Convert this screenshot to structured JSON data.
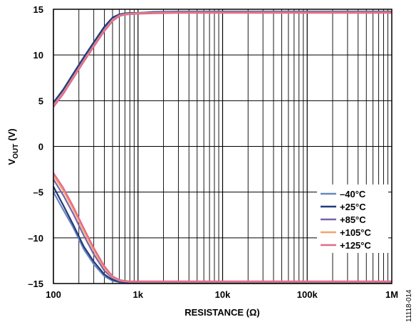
{
  "figure_id": "11118-014",
  "chart_data": {
    "type": "line",
    "xlabel": "RESISTANCE (Ω)",
    "ylabel_main": "V",
    "ylabel_sub": "OUT",
    "ylabel_unit": "(V)",
    "x_scale": "log",
    "xlim": [
      100,
      1000000
    ],
    "ylim": [
      -15,
      15
    ],
    "x_ticks": [
      {
        "value": 100,
        "label": "100"
      },
      {
        "value": 1000,
        "label": "1k"
      },
      {
        "value": 10000,
        "label": "10k"
      },
      {
        "value": 100000,
        "label": "100k"
      },
      {
        "value": 1000000,
        "label": "1M"
      }
    ],
    "y_ticks": [
      {
        "value": -15,
        "label": "–15"
      },
      {
        "value": -10,
        "label": "–10"
      },
      {
        "value": -5,
        "label": "–5"
      },
      {
        "value": 0,
        "label": "0"
      },
      {
        "value": 5,
        "label": "5"
      },
      {
        "value": 10,
        "label": "10"
      },
      {
        "value": 15,
        "label": "15"
      }
    ],
    "grid": true,
    "legend_position": "bottom-right",
    "series": [
      {
        "name": "–40°C",
        "color": "#6b86bf",
        "positive": {
          "x": [
            100,
            130,
            170,
            230,
            300,
            400,
            500,
            600,
            700,
            800,
            1000,
            1500,
            3000,
            10000,
            100000,
            1000000
          ],
          "y": [
            4.4,
            5.8,
            7.6,
            9.5,
            11.2,
            12.9,
            13.9,
            14.3,
            14.5,
            14.55,
            14.6,
            14.65,
            14.7,
            14.7,
            14.7,
            14.7
          ]
        },
        "negative": {
          "x": [
            100,
            130,
            170,
            230,
            300,
            400,
            500,
            600,
            700,
            800,
            1000,
            1500,
            3000,
            10000,
            100000,
            1000000
          ],
          "y": [
            -5.0,
            -6.9,
            -8.8,
            -11.3,
            -12.9,
            -14.2,
            -14.7,
            -14.85,
            -14.9,
            -14.9,
            -14.9,
            -14.9,
            -14.9,
            -14.9,
            -14.9,
            -14.9
          ]
        }
      },
      {
        "name": "+25°C",
        "color": "#1f3a7a",
        "positive": {
          "x": [
            100,
            130,
            170,
            230,
            300,
            400,
            500,
            600,
            700,
            800,
            1000,
            1500,
            3000,
            10000,
            100000,
            1000000
          ],
          "y": [
            4.8,
            6.2,
            7.9,
            9.8,
            11.4,
            13.1,
            14.1,
            14.45,
            14.55,
            14.6,
            14.6,
            14.7,
            14.75,
            14.75,
            14.75,
            14.75
          ]
        },
        "negative": {
          "x": [
            100,
            130,
            170,
            230,
            300,
            400,
            500,
            600,
            700,
            800,
            1000,
            1500,
            3000,
            10000,
            100000,
            1000000
          ],
          "y": [
            -4.4,
            -6.4,
            -8.5,
            -11.0,
            -12.6,
            -14.0,
            -14.6,
            -14.8,
            -14.85,
            -14.9,
            -14.9,
            -14.9,
            -14.9,
            -14.9,
            -14.9,
            -14.9
          ]
        }
      },
      {
        "name": "+85°C",
        "color": "#7a62aa",
        "positive": {
          "x": [
            100,
            130,
            170,
            230,
            300,
            400,
            500,
            600,
            700,
            800,
            1000,
            1500,
            3000,
            10000,
            100000,
            1000000
          ],
          "y": [
            4.5,
            5.9,
            7.6,
            9.5,
            11.1,
            12.8,
            13.9,
            14.35,
            14.5,
            14.55,
            14.6,
            14.65,
            14.7,
            14.7,
            14.7,
            14.7
          ]
        },
        "negative": {
          "x": [
            100,
            130,
            170,
            230,
            300,
            400,
            500,
            600,
            700,
            800,
            1000,
            1500,
            3000,
            10000,
            100000,
            1000000
          ],
          "y": [
            -3.6,
            -5.3,
            -7.3,
            -9.8,
            -11.8,
            -13.6,
            -14.4,
            -14.7,
            -14.8,
            -14.85,
            -14.85,
            -14.85,
            -14.85,
            -14.85,
            -14.85,
            -14.85
          ]
        }
      },
      {
        "name": "+105°C",
        "color": "#f3a46b",
        "positive": {
          "x": [
            100,
            130,
            170,
            230,
            300,
            400,
            500,
            600,
            700,
            800,
            1000,
            1500,
            3000,
            10000,
            100000,
            1000000
          ],
          "y": [
            4.4,
            5.8,
            7.5,
            9.4,
            11.0,
            12.7,
            13.8,
            14.3,
            14.45,
            14.5,
            14.55,
            14.6,
            14.65,
            14.65,
            14.65,
            14.65
          ]
        },
        "negative": {
          "x": [
            100,
            130,
            170,
            230,
            300,
            400,
            500,
            600,
            700,
            800,
            1000,
            1500,
            3000,
            10000,
            100000,
            1000000
          ],
          "y": [
            -3.2,
            -4.8,
            -6.8,
            -9.3,
            -11.4,
            -13.3,
            -14.3,
            -14.65,
            -14.75,
            -14.8,
            -14.8,
            -14.8,
            -14.8,
            -14.8,
            -14.8,
            -14.8
          ]
        }
      },
      {
        "name": "+125°C",
        "color": "#e46a8c",
        "positive": {
          "x": [
            100,
            130,
            170,
            230,
            300,
            400,
            500,
            600,
            700,
            800,
            1000,
            1500,
            3000,
            10000,
            100000,
            1000000
          ],
          "y": [
            4.3,
            5.7,
            7.4,
            9.3,
            10.9,
            12.6,
            13.7,
            14.25,
            14.4,
            14.45,
            14.5,
            14.55,
            14.6,
            14.6,
            14.6,
            14.6
          ]
        },
        "negative": {
          "x": [
            100,
            130,
            170,
            230,
            300,
            400,
            500,
            600,
            700,
            800,
            1000,
            1500,
            3000,
            10000,
            100000,
            1000000
          ],
          "y": [
            -2.9,
            -4.5,
            -6.5,
            -9.0,
            -11.1,
            -13.1,
            -14.2,
            -14.6,
            -14.7,
            -14.75,
            -14.75,
            -14.75,
            -14.75,
            -14.75,
            -14.75,
            -14.75
          ]
        }
      }
    ]
  }
}
